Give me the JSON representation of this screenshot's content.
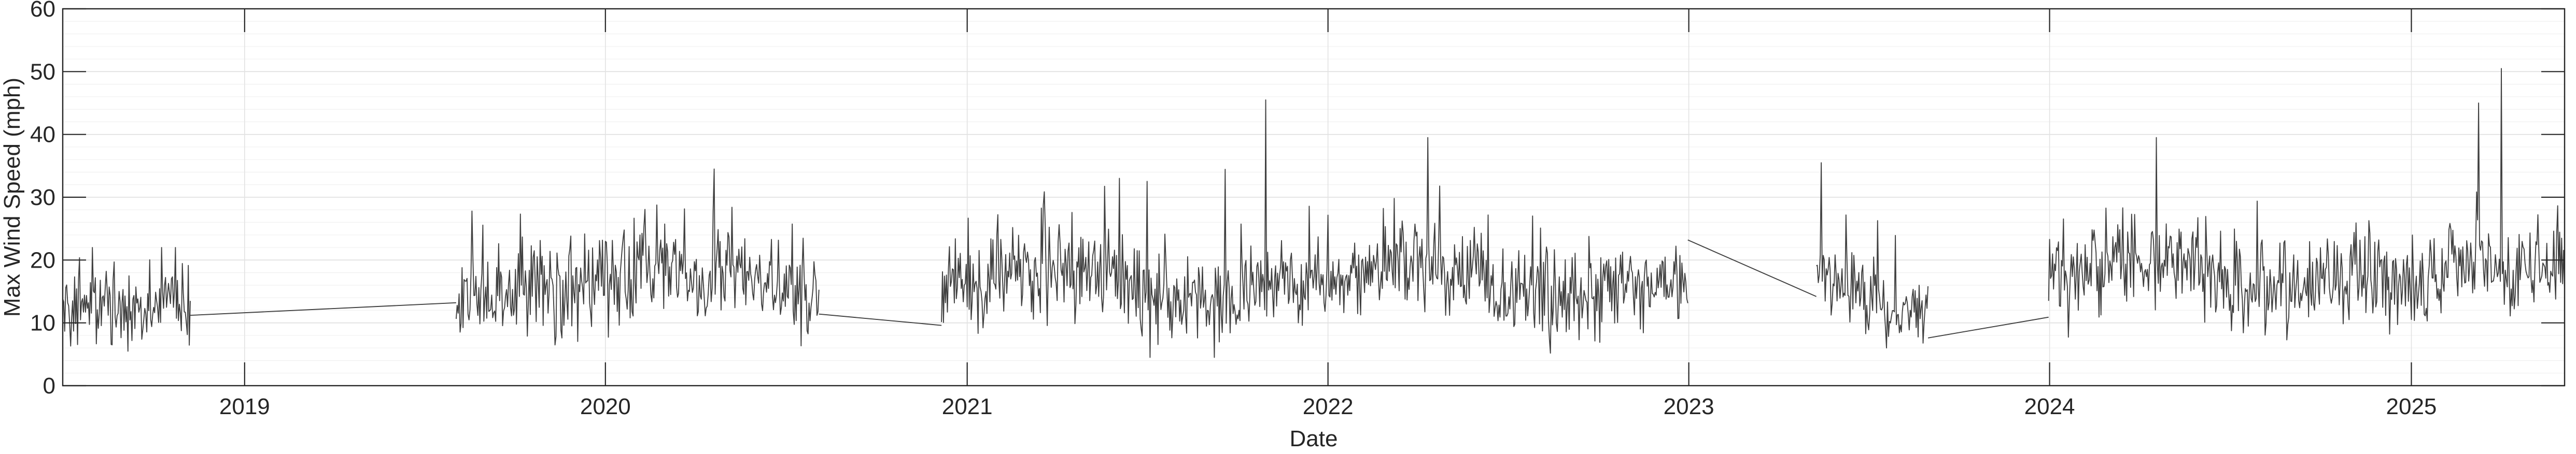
{
  "chart_data": {
    "type": "line",
    "title": "",
    "xlabel": "Date",
    "ylabel": "Max Wind Speed (mph)",
    "ylim": [
      0,
      60
    ],
    "xlim": [
      "2018-07-01",
      "2025-06-05"
    ],
    "yticks": [
      0,
      10,
      20,
      30,
      40,
      50,
      60
    ],
    "xticks": [
      "2019",
      "2020",
      "2021",
      "2022",
      "2023",
      "2024",
      "2025"
    ],
    "xtick_dates": [
      "2019-01-01",
      "2020-01-01",
      "2021-01-01",
      "2022-01-01",
      "2023-01-01",
      "2024-01-01",
      "2025-01-01"
    ],
    "grid": true,
    "minor_grid_y": true,
    "series_color": "#404040",
    "series": [
      {
        "segments": [
          {
            "start": "2018-07-01",
            "end": "2018-11-07",
            "mean": 14,
            "spread": 5.5,
            "min": 4,
            "max": 26
          },
          {
            "start": "2019-08-03",
            "end": "2020-08-04",
            "mean": 16,
            "spread": 6,
            "min": 5.5,
            "max": 34.5
          },
          {
            "start": "2020-12-06",
            "end": "2022-12-31",
            "mean": 16,
            "spread": 6,
            "min": 4.5,
            "max": 45.5
          },
          {
            "start": "2023-05-10",
            "end": "2023-08-31",
            "mean": 14,
            "spread": 5,
            "min": 6,
            "max": 36
          },
          {
            "start": "2023-12-31",
            "end": "2025-06-05",
            "mean": 17,
            "spread": 6,
            "min": 5.5,
            "max": 50.5
          }
        ],
        "gap_connectors": [
          {
            "from": [
              "2018-11-07",
              11.2
            ],
            "to": [
              "2019-08-03",
              13.2
            ]
          },
          {
            "from": [
              "2020-08-04",
              11.4
            ],
            "to": [
              "2020-12-06",
              9.6
            ]
          },
          {
            "from": [
              "2022-12-31",
              23.2
            ],
            "to": [
              "2023-05-10",
              14.2
            ]
          },
          {
            "from": [
              "2023-08-31",
              7.6
            ],
            "to": [
              "2023-12-31",
              10.9
            ]
          }
        ],
        "notable_peaks": [
          {
            "date": "2021-10-30",
            "value": 45.5
          },
          {
            "date": "2022-04-12",
            "value": 39.5
          },
          {
            "date": "2024-04-18",
            "value": 39.5
          },
          {
            "date": "2025-03-10",
            "value": 45
          },
          {
            "date": "2025-04-02",
            "value": 50.5
          },
          {
            "date": "2020-04-20",
            "value": 34.5
          },
          {
            "date": "2023-05-15",
            "value": 35.5
          }
        ]
      }
    ]
  }
}
